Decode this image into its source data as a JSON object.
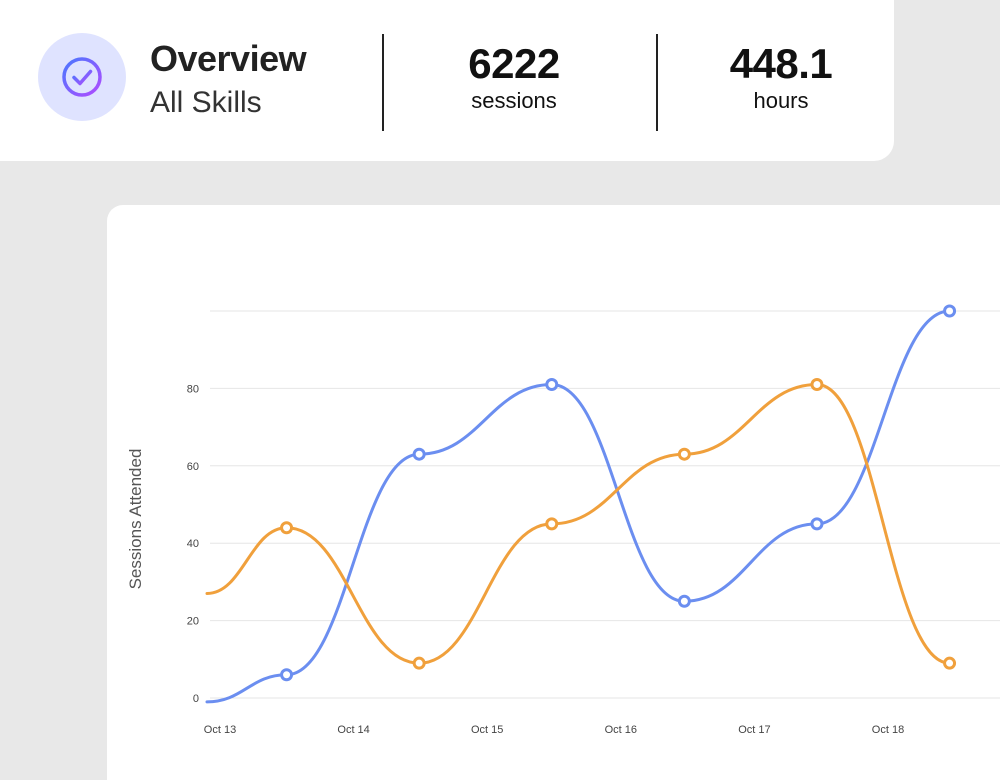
{
  "overview": {
    "title": "Overview",
    "subtitle": "All Skills",
    "icon": "check-circle-icon",
    "sessions_value": "6222",
    "sessions_label": "sessions",
    "hours_value": "448.1",
    "hours_label": "hours"
  },
  "colors": {
    "background": "#e8e8e8",
    "card": "#ffffff",
    "badge_bg": "#dfe3ff",
    "icon_gradient_start": "#4a78ff",
    "icon_gradient_end": "#b04bff",
    "series_blue": "#6b8ef0",
    "series_orange": "#f0a03c",
    "grid": "#e6e6e6"
  },
  "chart_data": {
    "type": "line",
    "ylabel": "Sessions Attended",
    "xlabel": "",
    "y_ticks": [
      0,
      20,
      40,
      60,
      80
    ],
    "ylim": [
      0,
      100
    ],
    "x_ticks": [
      "Oct 13",
      "Oct 14",
      "Oct 15",
      "Oct 16",
      "Oct 17",
      "Oct 18"
    ],
    "x": [
      0,
      0.6,
      1.6,
      2.6,
      3.6,
      4.6,
      5.6
    ],
    "grid": true,
    "legend": "none",
    "series": [
      {
        "color": "#6b8ef0",
        "values": [
          -1,
          6,
          63,
          81,
          25,
          45,
          100
        ]
      },
      {
        "color": "#f0a03c",
        "values": [
          27,
          44,
          9,
          45,
          63,
          81,
          9
        ]
      }
    ]
  }
}
